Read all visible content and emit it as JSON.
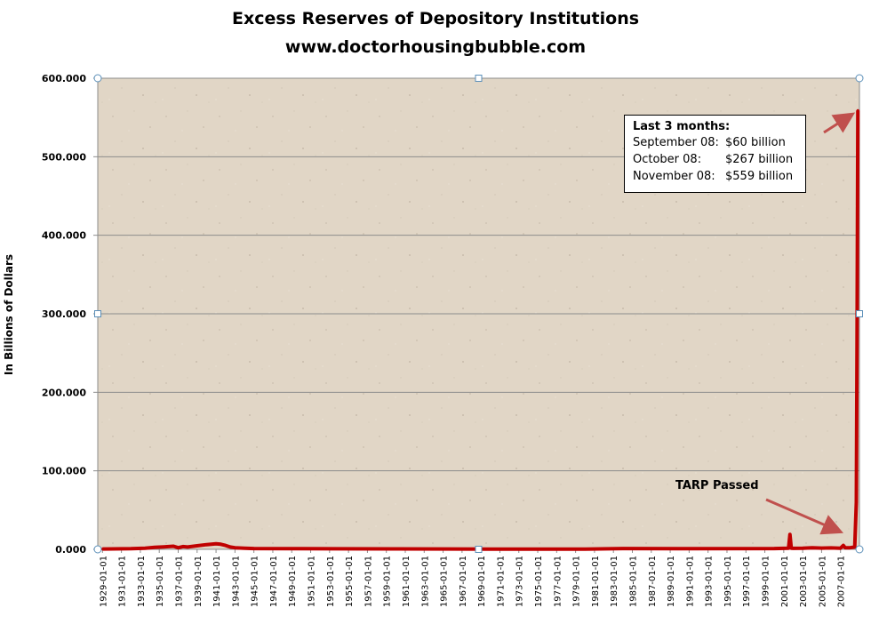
{
  "chart_data": {
    "type": "line",
    "title": "Excess Reserves of Depository Institutions",
    "subtitle": "www.doctorhousingbubble.com",
    "ylabel": "In Billions of Dollars",
    "xlabel": "",
    "ylim": [
      0,
      600
    ],
    "yticks": [
      "0.000",
      "100.000",
      "200.000",
      "300.000",
      "400.000",
      "500.000",
      "600.000"
    ],
    "xticks": [
      "1929-01-01",
      "1931-01-01",
      "1933-01-01",
      "1935-01-01",
      "1937-01-01",
      "1939-01-01",
      "1941-01-01",
      "1943-01-01",
      "1945-01-01",
      "1947-01-01",
      "1949-01-01",
      "1951-01-01",
      "1953-01-01",
      "1955-01-01",
      "1957-01-01",
      "1959-01-01",
      "1961-01-01",
      "1963-01-01",
      "1965-01-01",
      "1967-01-01",
      "1969-01-01",
      "1971-01-01",
      "1973-01-01",
      "1975-01-01",
      "1977-01-01",
      "1979-01-01",
      "1981-01-01",
      "1983-01-01",
      "1985-01-01",
      "1987-01-01",
      "1989-01-01",
      "1991-01-01",
      "1993-01-01",
      "1995-01-01",
      "1997-01-01",
      "1999-01-01",
      "2001-01-01",
      "2003-01-01",
      "2005-01-01",
      "2007-01-01"
    ],
    "grid": true,
    "series": [
      {
        "color": "#c00000",
        "x": [
          1929.0,
          1932.0,
          1933.5,
          1934.5,
          1935.5,
          1936.5,
          1937.0,
          1937.5,
          1938.0,
          1939.0,
          1940.0,
          1940.5,
          1941.0,
          1941.5,
          1942.0,
          1942.5,
          1943.0,
          1944.0,
          1945.0,
          1950.0,
          1960.0,
          1970.0,
          1980.0,
          1984.0,
          1990.0,
          2000.0,
          2001.5,
          2001.65,
          2001.8,
          2002.0,
          2003.0,
          2004.0,
          2005.0,
          2006.0,
          2007.0,
          2007.3,
          2007.5,
          2008.0,
          2008.5,
          2008.67,
          2008.75,
          2008.83
        ],
        "values": [
          0.5,
          0.8,
          1.5,
          2.5,
          3.2,
          4.0,
          2.0,
          3.5,
          3.0,
          4.5,
          6.0,
          6.5,
          7.0,
          6.5,
          5.0,
          3.0,
          2.0,
          1.5,
          1.0,
          0.8,
          0.6,
          0.3,
          0.3,
          1.0,
          0.8,
          1.0,
          1.5,
          19.0,
          1.5,
          1.2,
          1.5,
          2.0,
          1.6,
          1.8,
          1.5,
          5.0,
          2.0,
          2.0,
          3.0,
          60.0,
          267.0,
          559.0
        ]
      }
    ],
    "annotations": [
      {
        "text": "TARP Passed"
      },
      {
        "text": "Last 3 months:"
      },
      {
        "text": "September 08:",
        "value": "$60 billion"
      },
      {
        "text": "October 08:",
        "value": "$267 billion"
      },
      {
        "text": "November 08:",
        "value": "$559 billion"
      }
    ],
    "colors": {
      "plot_background": "#e1d6c6",
      "line": "#c00000",
      "arrow": "#c0504d",
      "grid": "#8c8c8c"
    }
  }
}
